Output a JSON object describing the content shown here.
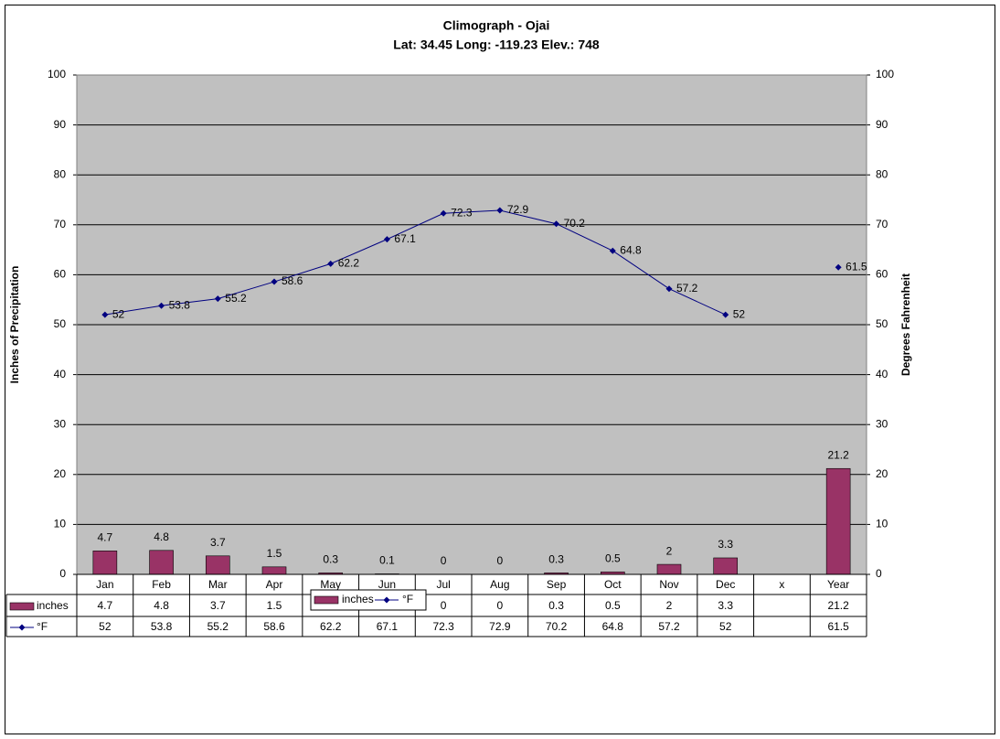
{
  "chart_data": {
    "type": "bar-line",
    "title": "Climograph - Ojai",
    "subtitle": "Lat: 34.45 Long: -119.23 Elev.: 748",
    "y_label": "Inches of Precipitation",
    "y2_label": "Degrees Fahrenheit",
    "categories": [
      "Jan",
      "Feb",
      "Mar",
      "Apr",
      "May",
      "Jun",
      "Jul",
      "Aug",
      "Sep",
      "Oct",
      "Nov",
      "Dec",
      "x",
      "Year"
    ],
    "series": [
      {
        "name": "inches",
        "type": "bar",
        "color": "#993366",
        "values": [
          4.7,
          4.8,
          3.7,
          1.5,
          0.3,
          0.1,
          0,
          0,
          0.3,
          0.5,
          2,
          3.3,
          null,
          21.2
        ]
      },
      {
        "name": "°F",
        "type": "line",
        "axis": "y2",
        "color": "#000080",
        "values": [
          52,
          53.8,
          55.2,
          58.6,
          62.2,
          67.1,
          72.3,
          72.9,
          70.2,
          64.8,
          57.2,
          52,
          null,
          61.5
        ]
      }
    ],
    "ylim": [
      0,
      100
    ],
    "yticks": [
      0,
      10,
      20,
      30,
      40,
      50,
      60,
      70,
      80,
      90,
      100
    ],
    "y2lim": [
      0,
      100
    ],
    "y2ticks": [
      0,
      10,
      20,
      30,
      40,
      50,
      60,
      70,
      80,
      90,
      100
    ],
    "grid": true,
    "legend": "bottom",
    "data_table": true,
    "plot_background": "#c0c0c0"
  }
}
